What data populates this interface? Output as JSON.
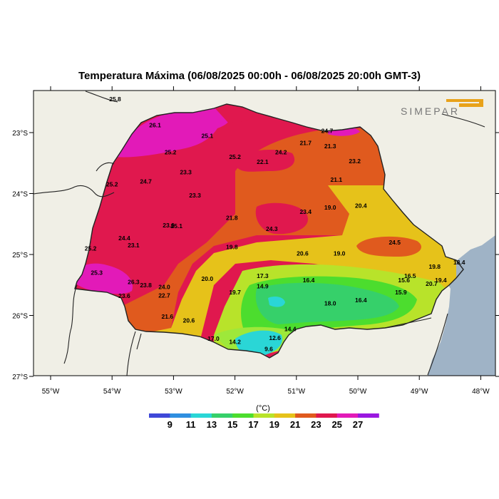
{
  "title": "Temperatura Máxima (06/08/2025 00:00h - 06/08/2025 20:00h GMT-3)",
  "logo": {
    "text": "SIMEPAR",
    "color": "#e8a21a"
  },
  "unit": "(°C)",
  "colors": {
    "land": "#f0efe6",
    "ocean": "#9fb3c6",
    "border": "#222222"
  },
  "colorbar": {
    "labels": [
      "9",
      "11",
      "13",
      "15",
      "17",
      "19",
      "21",
      "23",
      "25",
      "27"
    ],
    "swatches": [
      "#3f48d8",
      "#2f8fe0",
      "#2ad6d6",
      "#36d06a",
      "#4cdd2e",
      "#b8e32a",
      "#e6c21a",
      "#e05a1e",
      "#e0184e",
      "#e21ab8",
      "#9a18e0"
    ]
  },
  "axes": {
    "lon_labels": [
      "55°W",
      "54°W",
      "53°W",
      "52°W",
      "51°W",
      "50°W",
      "49°W",
      "48°W"
    ],
    "lat_labels": [
      "23°S",
      "24°S",
      "25°S",
      "26°S",
      "27°S"
    ]
  },
  "stations": [
    {
      "v": "25.8",
      "lon": -53.95,
      "lat": -22.45
    },
    {
      "v": "26.1",
      "lon": -53.3,
      "lat": -22.88
    },
    {
      "v": "25.1",
      "lon": -52.45,
      "lat": -23.05
    },
    {
      "v": "25.2",
      "lon": -53.05,
      "lat": -23.32
    },
    {
      "v": "25.2",
      "lon": -52.0,
      "lat": -23.4
    },
    {
      "v": "22.1",
      "lon": -51.55,
      "lat": -23.48
    },
    {
      "v": "24.2",
      "lon": -51.25,
      "lat": -23.32
    },
    {
      "v": "24.7",
      "lon": -50.5,
      "lat": -22.97
    },
    {
      "v": "21.7",
      "lon": -50.85,
      "lat": -23.17
    },
    {
      "v": "21.3",
      "lon": -50.45,
      "lat": -23.22
    },
    {
      "v": "23.2",
      "lon": -50.05,
      "lat": -23.47
    },
    {
      "v": "23.3",
      "lon": -52.8,
      "lat": -23.65
    },
    {
      "v": "24.7",
      "lon": -53.45,
      "lat": -23.8
    },
    {
      "v": "25.2",
      "lon": -54.0,
      "lat": -23.85
    },
    {
      "v": "21.1",
      "lon": -50.35,
      "lat": -23.77
    },
    {
      "v": "23.3",
      "lon": -52.65,
      "lat": -24.03
    },
    {
      "v": "19.0",
      "lon": -50.45,
      "lat": -24.23
    },
    {
      "v": "20.4",
      "lon": -49.95,
      "lat": -24.2
    },
    {
      "v": "23.4",
      "lon": -50.85,
      "lat": -24.3
    },
    {
      "v": "21.8",
      "lon": -52.05,
      "lat": -24.4
    },
    {
      "v": "23.6",
      "lon": -53.08,
      "lat": -24.52
    },
    {
      "v": "25.1",
      "lon": -52.95,
      "lat": -24.53
    },
    {
      "v": "24.3",
      "lon": -51.4,
      "lat": -24.58
    },
    {
      "v": "24.4",
      "lon": -53.8,
      "lat": -24.73
    },
    {
      "v": "23.1",
      "lon": -53.65,
      "lat": -24.85
    },
    {
      "v": "25.2",
      "lon": -54.35,
      "lat": -24.9
    },
    {
      "v": "24.5",
      "lon": -49.4,
      "lat": -24.8
    },
    {
      "v": "19.8",
      "lon": -52.05,
      "lat": -24.88
    },
    {
      "v": "20.6",
      "lon": -50.9,
      "lat": -24.98
    },
    {
      "v": "19.0",
      "lon": -50.3,
      "lat": -24.98
    },
    {
      "v": "19.8",
      "lon": -48.75,
      "lat": -25.2
    },
    {
      "v": "18.4",
      "lon": -48.35,
      "lat": -25.13
    },
    {
      "v": "25.3",
      "lon": -54.25,
      "lat": -25.3
    },
    {
      "v": "17.3",
      "lon": -51.55,
      "lat": -25.35
    },
    {
      "v": "16.5",
      "lon": -49.15,
      "lat": -25.35
    },
    {
      "v": "19.4",
      "lon": -48.65,
      "lat": -25.42
    },
    {
      "v": "26.3",
      "lon": -53.65,
      "lat": -25.45
    },
    {
      "v": "23.8",
      "lon": -53.45,
      "lat": -25.5
    },
    {
      "v": "24.0",
      "lon": -53.15,
      "lat": -25.53
    },
    {
      "v": "20.0",
      "lon": -52.45,
      "lat": -25.4
    },
    {
      "v": "16.4",
      "lon": -50.8,
      "lat": -25.42
    },
    {
      "v": "15.6",
      "lon": -49.25,
      "lat": -25.42
    },
    {
      "v": "20.7",
      "lon": -48.8,
      "lat": -25.48
    },
    {
      "v": "14.9",
      "lon": -51.55,
      "lat": -25.52
    },
    {
      "v": "19.7",
      "lon": -52.0,
      "lat": -25.62
    },
    {
      "v": "22.7",
      "lon": -53.15,
      "lat": -25.67
    },
    {
      "v": "23.6",
      "lon": -53.8,
      "lat": -25.68
    },
    {
      "v": "15.9",
      "lon": -49.3,
      "lat": -25.62
    },
    {
      "v": "16.4",
      "lon": -49.95,
      "lat": -25.75
    },
    {
      "v": "18.0",
      "lon": -50.45,
      "lat": -25.8
    },
    {
      "v": "21.6",
      "lon": -53.1,
      "lat": -26.02
    },
    {
      "v": "20.6",
      "lon": -52.75,
      "lat": -26.08
    },
    {
      "v": "14.4",
      "lon": -51.1,
      "lat": -26.22
    },
    {
      "v": "12.6",
      "lon": -51.35,
      "lat": -26.37
    },
    {
      "v": "17.0",
      "lon": -52.35,
      "lat": -26.38
    },
    {
      "v": "14.2",
      "lon": -52.0,
      "lat": -26.43
    },
    {
      "v": "9.6",
      "lon": -51.45,
      "lat": -26.55
    }
  ]
}
